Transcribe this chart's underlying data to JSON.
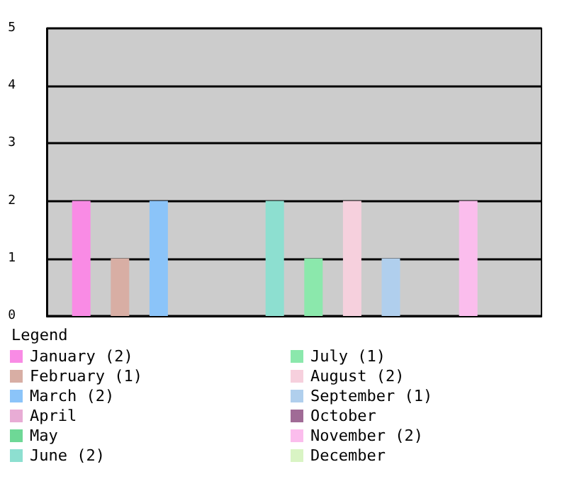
{
  "chart_data": {
    "type": "bar",
    "legend_title": "Legend",
    "legend": "bottom",
    "grid": "y",
    "categories": [
      null
    ],
    "ylim": [
      0,
      5
    ],
    "yticks": [
      0,
      1,
      2,
      3,
      4,
      5
    ],
    "series": [
      {
        "name": "January (2)",
        "color": "#f98be5",
        "values": [
          2
        ]
      },
      {
        "name": "February (1)",
        "color": "#d8aea4",
        "values": [
          1
        ]
      },
      {
        "name": "March (2)",
        "color": "#8bc4f9",
        "values": [
          2
        ]
      },
      {
        "name": "April",
        "color": "#e8acd5",
        "values": [
          0
        ]
      },
      {
        "name": "May",
        "color": "#6ed896",
        "values": [
          0
        ]
      },
      {
        "name": "June (2)",
        "color": "#8ddfd0",
        "values": [
          2
        ]
      },
      {
        "name": "July (1)",
        "color": "#8be8ac",
        "values": [
          1
        ]
      },
      {
        "name": "August (2)",
        "color": "#f6d0dd",
        "values": [
          2
        ]
      },
      {
        "name": "September (1)",
        "color": "#b0cfed",
        "values": [
          1
        ]
      },
      {
        "name": "October",
        "color": "#a06b96",
        "values": [
          0
        ]
      },
      {
        "name": "November (2)",
        "color": "#fbbded",
        "values": [
          2
        ]
      },
      {
        "name": "December",
        "color": "#d9f4c4",
        "values": [
          0
        ]
      }
    ]
  }
}
